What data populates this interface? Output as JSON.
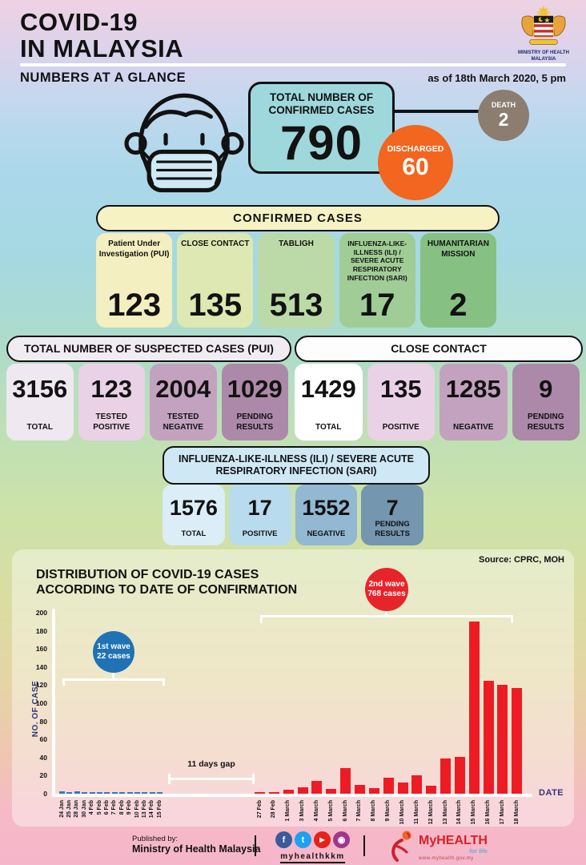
{
  "header": {
    "title_line1": "COVID-19",
    "title_line2": "IN MALAYSIA",
    "subtitle": "NUMBERS AT A GLANCE",
    "as_of": "as of 18th March 2020, 5 pm",
    "ministry_line1": "MINISTRY OF HEALTH",
    "ministry_line2": "MALAYSIA"
  },
  "hero": {
    "total_label": "TOTAL NUMBER OF CONFIRMED CASES",
    "total_value": "790",
    "total_box_color": "#9ed8dc",
    "discharged_label": "DISCHARGED",
    "discharged_value": "60",
    "discharged_color": "#f2661f",
    "death_label": "DEATH",
    "death_value": "2",
    "death_color": "#8b7d70"
  },
  "confirmed": {
    "header": "CONFIRMED CASES",
    "cards": [
      {
        "label": "Patient Under Investigation (PUI)",
        "value": "123",
        "color": "#f3efc0"
      },
      {
        "label": "CLOSE CONTACT",
        "value": "135",
        "color": "#dde8b2"
      },
      {
        "label": "TABLIGH",
        "value": "513",
        "color": "#bcdaa8"
      },
      {
        "label": "INFLUENZA-LIKE-ILLNESS (ILI) / SEVERE ACUTE RESPIRATORY INFECTION (SARI)",
        "value": "17",
        "color": "#a0cd95"
      },
      {
        "label": "HUMANITARIAN MISSION",
        "value": "2",
        "color": "#87c083"
      }
    ]
  },
  "suspected": {
    "header": "TOTAL NUMBER OF SUSPECTED CASES (PUI)",
    "header_color": "#f1ebf2",
    "cards": [
      {
        "label": "TOTAL",
        "value": "3156",
        "color": "#efe8f0"
      },
      {
        "label": "TESTED POSITIVE",
        "value": "123",
        "color": "#ead2e6"
      },
      {
        "label": "TESTED NEGATIVE",
        "value": "2004",
        "color": "#c3a2c0"
      },
      {
        "label": "PENDING RESULTS",
        "value": "1029",
        "color": "#ac89a9"
      }
    ]
  },
  "close_contact": {
    "header": "CLOSE CONTACT",
    "header_color": "#fdfdfd",
    "cards": [
      {
        "label": "TOTAL",
        "value": "1429",
        "color": "#ffffff"
      },
      {
        "label": "POSITIVE",
        "value": "135",
        "color": "#ead2e6"
      },
      {
        "label": "NEGATIVE",
        "value": "1285",
        "color": "#c3a2c0"
      },
      {
        "label": "PENDING RESULTS",
        "value": "9",
        "color": "#ac89a9"
      }
    ]
  },
  "ili_sari": {
    "header": "INFLUENZA-LIKE-ILLNESS (ILI) / SEVERE ACUTE RESPIRATORY INFECTION (SARI)",
    "header_color": "#cfe8f6",
    "cards": [
      {
        "label": "TOTAL",
        "value": "1576",
        "color": "#dbedf7"
      },
      {
        "label": "POSITIVE",
        "value": "17",
        "color": "#b9dbee"
      },
      {
        "label": "NEGATIVE",
        "value": "1552",
        "color": "#93b8d1"
      },
      {
        "label": "PENDING RESULTS",
        "value": "7",
        "color": "#7496ae"
      }
    ]
  },
  "chart": {
    "source": "Source: CPRC, MOH",
    "title_line1": "DISTRIBUTION OF COVID-19 CASES",
    "title_line2": "ACCORDING TO DATE OF CONFIRMATION",
    "ylabel": "NO. OF CASE",
    "xlabel": "DATE",
    "wave1_line1": "1st wave",
    "wave1_line2": "22 cases",
    "wave2_line1": "2nd wave",
    "wave2_line2": "768 cases",
    "gap_label": "11 days gap"
  },
  "chart_data": {
    "type": "bar",
    "title": "DISTRIBUTION OF COVID-19 CASES ACCORDING TO DATE OF CONFIRMATION",
    "xlabel": "DATE",
    "ylabel": "NO. OF CASE",
    "ylim": [
      0,
      200
    ],
    "ytick_step": 20,
    "grid": false,
    "legend": false,
    "series": [
      {
        "name": "1st wave (22 cases)",
        "color": "#2e7cc0",
        "categories": [
          "24 Jan",
          "25 Jan",
          "28 Jan",
          "30 Jan",
          "4 Feb",
          "5 Feb",
          "6 Feb",
          "7 Feb",
          "8 Feb",
          "9 Feb",
          "10 Feb",
          "13 Feb",
          "14 Feb",
          "15 Feb"
        ],
        "values": [
          3,
          1,
          3,
          1,
          2,
          2,
          2,
          1,
          1,
          1,
          1,
          1,
          2,
          1
        ]
      },
      {
        "name": "2nd wave (768 cases)",
        "color": "#ed1c24",
        "categories": [
          "27 Feb",
          "28 Feb",
          "1 March",
          "3 March",
          "4 March",
          "5 March",
          "6 March",
          "7 March",
          "8 March",
          "9 March",
          "10 March",
          "11 March",
          "12 March",
          "13 March",
          "14 March",
          "15 March",
          "16 March",
          "17 March",
          "18 March"
        ],
        "values": [
          1,
          2,
          4,
          7,
          14,
          5,
          28,
          10,
          6,
          18,
          12,
          20,
          9,
          39,
          41,
          190,
          125,
          120,
          117
        ]
      }
    ],
    "annotations": [
      "1st wave 22 cases",
      "2nd wave 768 cases",
      "11 days gap"
    ]
  },
  "footer": {
    "published_by": "Published by:",
    "publisher": "Ministry of Health Malaysia",
    "social": [
      {
        "name": "facebook-icon",
        "glyph": "f",
        "color": "#3a5a9b"
      },
      {
        "name": "twitter-icon",
        "glyph": "t",
        "color": "#1da1f2"
      },
      {
        "name": "youtube-icon",
        "glyph": "▶",
        "color": "#e62117"
      },
      {
        "name": "instagram-icon",
        "glyph": "◉",
        "color": "#a0368c"
      }
    ],
    "handle": "myhealthkkm",
    "brand": "MyHEALTH",
    "brand_tagline": "for life",
    "brand_url": "www.myhealth.gov.my"
  }
}
